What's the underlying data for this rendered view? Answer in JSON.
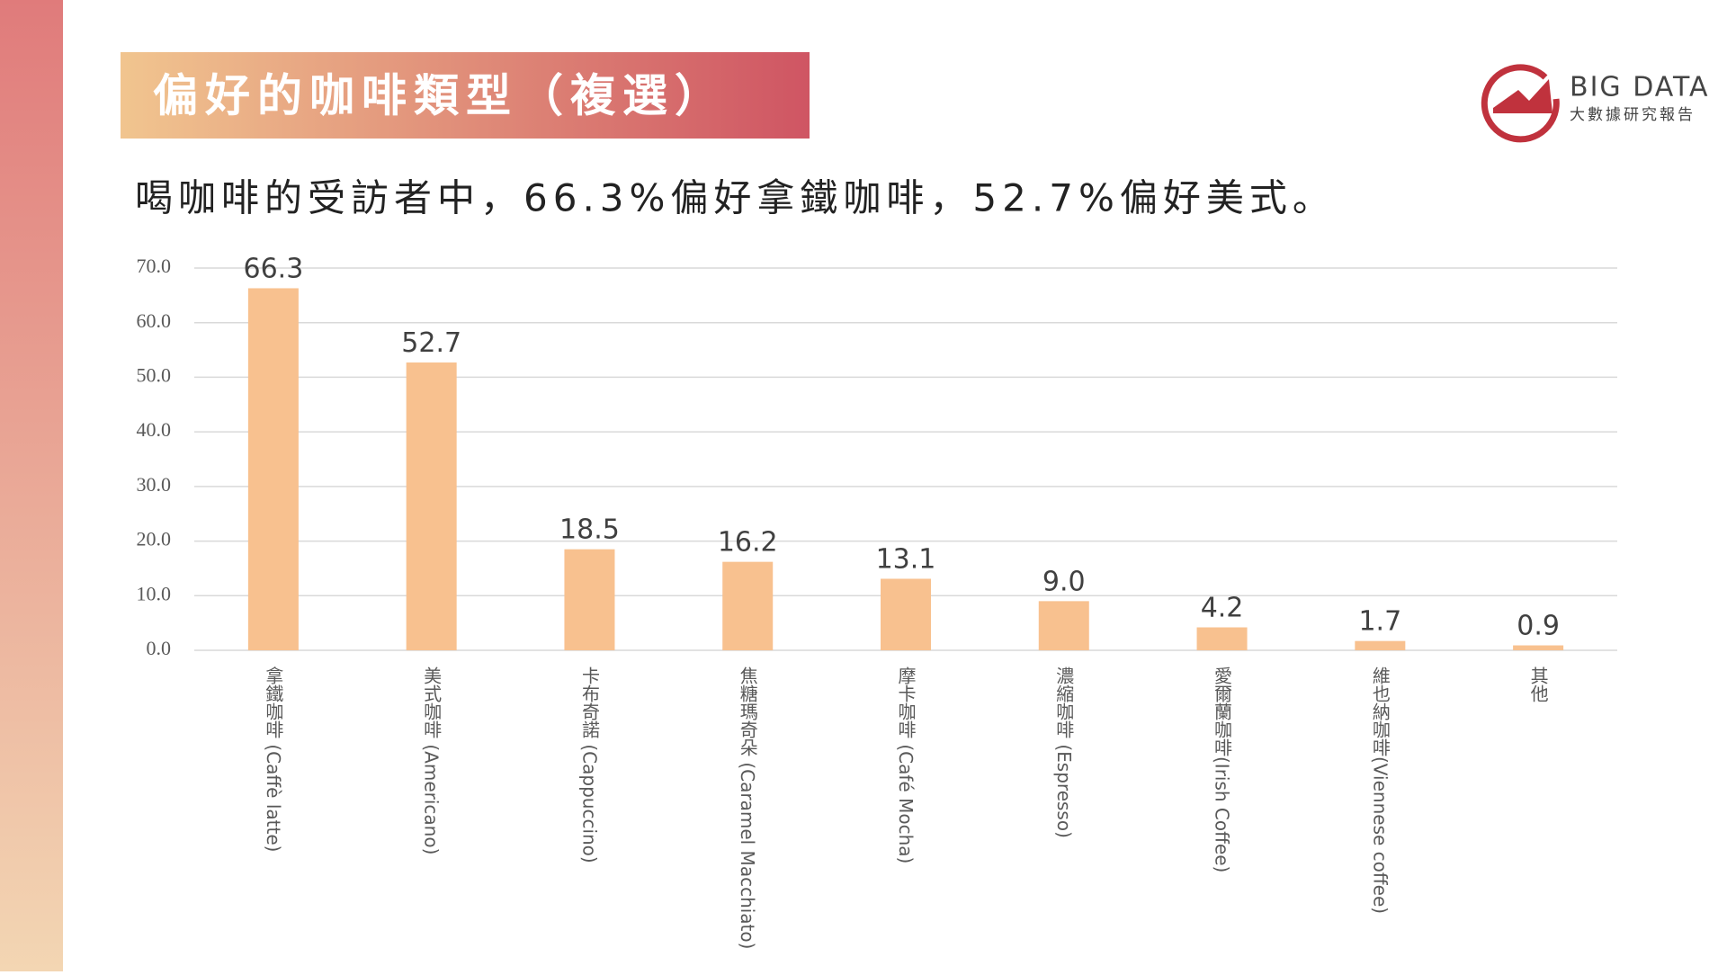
{
  "header": {
    "title": "偏好的咖啡類型（複選）",
    "subtitle": "喝咖啡的受訪者中，66.3%偏好拿鐵咖啡，52.7%偏好美式。"
  },
  "logo": {
    "name": "BIG DATA",
    "tagline": "大數據研究報告"
  },
  "chart_data": {
    "type": "bar",
    "categories": [
      "拿鐵咖啡 (Caffè latte)",
      "美式咖啡 (Americano)",
      "卡布奇諾 (Cappuccino)",
      "焦糖瑪奇朵 (Caramel Macchiato)",
      "摩卡咖啡 (Café Mocha)",
      "濃縮咖啡 (Espresso)",
      "愛爾蘭咖啡(Irish Coffee)",
      "維也納咖啡(Viennese coffee)",
      "其他"
    ],
    "values": [
      66.3,
      52.7,
      18.5,
      16.2,
      13.1,
      9.0,
      4.2,
      1.7,
      0.9
    ],
    "value_labels": [
      "66.3",
      "52.7",
      "18.5",
      "16.2",
      "13.1",
      "9.0",
      "4.2",
      "1.7",
      "0.9"
    ],
    "color": "#f8c18f",
    "ylim": [
      0,
      70
    ],
    "yticks": [
      {
        "value": 0,
        "label": "0.0"
      },
      {
        "value": 10,
        "label": "10.0"
      },
      {
        "value": 20,
        "label": "20.0"
      },
      {
        "value": 30,
        "label": "30.0"
      },
      {
        "value": 40,
        "label": "40.0"
      },
      {
        "value": 50,
        "label": "50.0"
      },
      {
        "value": 60,
        "label": "60.0"
      },
      {
        "value": 70,
        "label": "70.0"
      }
    ],
    "grid": true
  }
}
